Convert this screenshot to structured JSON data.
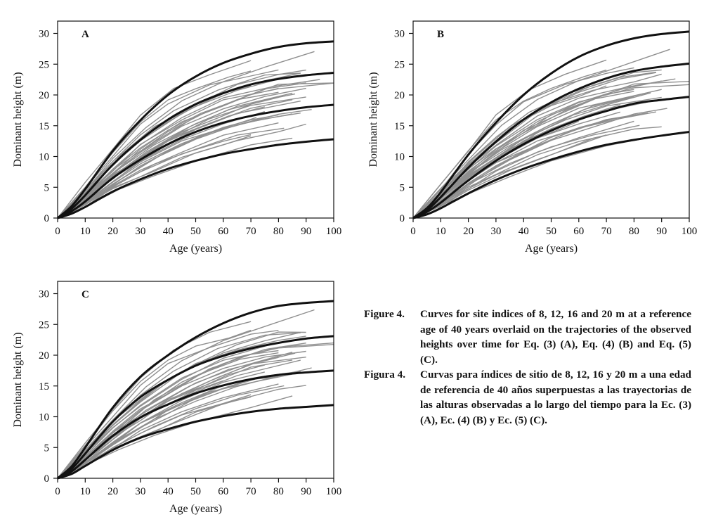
{
  "chart_data": [
    {
      "type": "line",
      "panel_label": "A",
      "xlabel": "Age (years)",
      "ylabel": "Dominant height (m)",
      "xlim": [
        0,
        100
      ],
      "ylim": [
        0,
        32
      ],
      "xticks": [
        0,
        10,
        20,
        30,
        40,
        50,
        60,
        70,
        80,
        90,
        100
      ],
      "yticks": [
        0,
        5,
        10,
        15,
        20,
        25,
        30
      ],
      "grid": false,
      "site_index_curves": [
        {
          "site_index": 8,
          "x": [
            0,
            5,
            10,
            20,
            30,
            40,
            50,
            60,
            70,
            80,
            90,
            100
          ],
          "y": [
            0,
            0.7,
            1.8,
            4.3,
            6.3,
            8.0,
            9.3,
            10.4,
            11.2,
            11.9,
            12.4,
            12.8
          ]
        },
        {
          "site_index": 12,
          "x": [
            0,
            5,
            10,
            20,
            30,
            40,
            50,
            60,
            70,
            80,
            90,
            100
          ],
          "y": [
            0,
            1.1,
            2.7,
            6.5,
            9.5,
            12.0,
            14.0,
            15.5,
            16.6,
            17.4,
            18.0,
            18.4
          ]
        },
        {
          "site_index": 16,
          "x": [
            0,
            5,
            10,
            20,
            30,
            40,
            50,
            60,
            70,
            80,
            90,
            100
          ],
          "y": [
            0,
            1.5,
            3.7,
            8.7,
            12.7,
            16.0,
            18.5,
            20.3,
            21.7,
            22.6,
            23.2,
            23.6
          ]
        },
        {
          "site_index": 20,
          "x": [
            0,
            5,
            10,
            20,
            30,
            40,
            50,
            60,
            70,
            80,
            90,
            100
          ],
          "y": [
            0,
            1.9,
            4.7,
            10.9,
            15.9,
            20.0,
            23.0,
            25.2,
            26.7,
            27.8,
            28.4,
            28.7
          ]
        }
      ]
    },
    {
      "type": "line",
      "panel_label": "B",
      "xlabel": "Age (years)",
      "ylabel": "Dominant height (m)",
      "xlim": [
        0,
        100
      ],
      "ylim": [
        0,
        32
      ],
      "xticks": [
        0,
        10,
        20,
        30,
        40,
        50,
        60,
        70,
        80,
        90,
        100
      ],
      "yticks": [
        0,
        5,
        10,
        15,
        20,
        25,
        30
      ],
      "grid": false,
      "site_index_curves": [
        {
          "site_index": 8,
          "x": [
            0,
            5,
            10,
            20,
            30,
            40,
            50,
            60,
            70,
            80,
            90,
            100
          ],
          "y": [
            0,
            0.6,
            1.6,
            4.0,
            6.2,
            8.0,
            9.5,
            10.8,
            11.9,
            12.7,
            13.4,
            14.0
          ]
        },
        {
          "site_index": 12,
          "x": [
            0,
            5,
            10,
            20,
            30,
            40,
            50,
            60,
            70,
            80,
            90,
            100
          ],
          "y": [
            0,
            1.0,
            2.5,
            6.1,
            9.3,
            12.0,
            14.2,
            16.0,
            17.4,
            18.6,
            19.2,
            19.7
          ]
        },
        {
          "site_index": 16,
          "x": [
            0,
            5,
            10,
            20,
            30,
            40,
            50,
            60,
            70,
            80,
            90,
            100
          ],
          "y": [
            0,
            1.3,
            3.4,
            8.2,
            12.4,
            16.0,
            18.8,
            21.0,
            22.7,
            23.9,
            24.6,
            25.1
          ]
        },
        {
          "site_index": 20,
          "x": [
            0,
            5,
            10,
            20,
            30,
            40,
            50,
            60,
            70,
            80,
            90,
            100
          ],
          "y": [
            0,
            1.6,
            4.2,
            10.3,
            15.5,
            20.0,
            23.5,
            26.2,
            28.0,
            29.2,
            29.9,
            30.3
          ]
        }
      ]
    },
    {
      "type": "line",
      "panel_label": "C",
      "xlabel": "Age (years)",
      "ylabel": "Dominant height (m)",
      "xlim": [
        0,
        100
      ],
      "ylim": [
        0,
        32
      ],
      "xticks": [
        0,
        10,
        20,
        30,
        40,
        50,
        60,
        70,
        80,
        90,
        100
      ],
      "yticks": [
        0,
        5,
        10,
        15,
        20,
        25,
        30
      ],
      "grid": false,
      "site_index_curves": [
        {
          "site_index": 8,
          "x": [
            0,
            5,
            10,
            20,
            30,
            40,
            50,
            60,
            70,
            80,
            90,
            100
          ],
          "y": [
            0,
            0.7,
            2.0,
            4.6,
            6.6,
            8.0,
            9.2,
            10.1,
            10.8,
            11.3,
            11.6,
            11.9
          ]
        },
        {
          "site_index": 12,
          "x": [
            0,
            5,
            10,
            20,
            30,
            40,
            50,
            60,
            70,
            80,
            90,
            100
          ],
          "y": [
            0,
            1.1,
            3.0,
            6.9,
            9.9,
            12.0,
            13.8,
            15.1,
            16.1,
            16.8,
            17.2,
            17.5
          ]
        },
        {
          "site_index": 16,
          "x": [
            0,
            5,
            10,
            20,
            30,
            40,
            50,
            60,
            70,
            80,
            90,
            100
          ],
          "y": [
            0,
            1.5,
            4.0,
            9.2,
            13.2,
            16.0,
            18.3,
            19.9,
            21.1,
            22.0,
            22.7,
            23.1
          ]
        },
        {
          "site_index": 20,
          "x": [
            0,
            5,
            10,
            20,
            30,
            40,
            50,
            60,
            70,
            80,
            90,
            100
          ],
          "y": [
            0,
            1.9,
            5.0,
            11.5,
            16.5,
            20.0,
            22.9,
            25.2,
            26.9,
            28.0,
            28.5,
            28.8
          ]
        }
      ]
    }
  ],
  "observed_trajectories": {
    "color": "#8f8f8f",
    "curve_color": "#111111",
    "series": [
      {
        "x": [
          0,
          10,
          20,
          30,
          42,
          55,
          70
        ],
        "y": [
          0,
          5.8,
          11.0,
          16.5,
          20.8,
          23.5,
          25.5
        ]
      },
      {
        "x": [
          0,
          10,
          20,
          32,
          45,
          60,
          75,
          93
        ],
        "y": [
          0,
          4.6,
          9.5,
          14.8,
          19.0,
          22.4,
          24.8,
          27.3
        ]
      },
      {
        "x": [
          0,
          10,
          20,
          35,
          50,
          65,
          80,
          90
        ],
        "y": [
          0,
          4.2,
          8.8,
          14.5,
          18.6,
          21.5,
          23.5,
          24.0
        ]
      },
      {
        "x": [
          0,
          10,
          20,
          30,
          45,
          60,
          75,
          88
        ],
        "y": [
          0,
          4.0,
          8.5,
          12.5,
          17.2,
          20.5,
          22.6,
          23.8
        ]
      },
      {
        "x": [
          0,
          10,
          22,
          35,
          50,
          65,
          80,
          100
        ],
        "y": [
          0,
          3.5,
          8.0,
          12.5,
          16.5,
          19.5,
          21.5,
          22.0
        ]
      },
      {
        "x": [
          0,
          10,
          20,
          30,
          45,
          60,
          75,
          90
        ],
        "y": [
          0,
          3.4,
          7.6,
          11.2,
          15.5,
          18.5,
          20.8,
          22.2
        ]
      },
      {
        "x": [
          0,
          10,
          20,
          35,
          50,
          65,
          85
        ],
        "y": [
          0,
          3.3,
          7.2,
          11.8,
          15.3,
          18.0,
          20.3
        ]
      },
      {
        "x": [
          0,
          10,
          20,
          30,
          40,
          55,
          70,
          80
        ],
        "y": [
          0,
          3.6,
          7.8,
          11.0,
          14.0,
          17.5,
          20.0,
          21.0
        ]
      },
      {
        "x": [
          0,
          10,
          20,
          32,
          45,
          58,
          72,
          86
        ],
        "y": [
          0,
          3.0,
          6.8,
          10.5,
          13.8,
          16.5,
          18.8,
          20.3
        ]
      },
      {
        "x": [
          0,
          10,
          20,
          30,
          40,
          55,
          70,
          90
        ],
        "y": [
          0,
          2.9,
          6.5,
          9.8,
          12.8,
          16.0,
          18.3,
          19.5
        ]
      },
      {
        "x": [
          0,
          10,
          20,
          30,
          45,
          60,
          75
        ],
        "y": [
          0,
          2.7,
          6.0,
          9.2,
          12.8,
          15.5,
          17.3
        ]
      },
      {
        "x": [
          0,
          10,
          20,
          35,
          50,
          65,
          80,
          92
        ],
        "y": [
          0,
          2.5,
          5.6,
          9.5,
          12.6,
          15.0,
          16.7,
          17.8
        ]
      },
      {
        "x": [
          0,
          10,
          20,
          30,
          40,
          55,
          70,
          85
        ],
        "y": [
          0,
          2.4,
          5.3,
          8.2,
          10.8,
          13.8,
          15.8,
          17.0
        ]
      },
      {
        "x": [
          0,
          10,
          20,
          30,
          45,
          60,
          80
        ],
        "y": [
          0,
          2.2,
          5.0,
          7.7,
          10.8,
          13.3,
          15.5
        ]
      },
      {
        "x": [
          0,
          10,
          20,
          35,
          50,
          65,
          80,
          90
        ],
        "y": [
          0,
          2.1,
          4.7,
          7.8,
          10.5,
          12.7,
          14.2,
          15.0
        ]
      },
      {
        "x": [
          0,
          10,
          20,
          30,
          45,
          60,
          70
        ],
        "y": [
          0,
          2.0,
          4.5,
          6.9,
          9.7,
          12.0,
          13.3
        ]
      },
      {
        "x": [
          0,
          10,
          22,
          35,
          50,
          70,
          85
        ],
        "y": [
          0,
          1.9,
          4.4,
          6.9,
          9.3,
          11.8,
          13.2
        ]
      },
      {
        "x": [
          0,
          10,
          20,
          30,
          40,
          55,
          70,
          80
        ],
        "y": [
          0,
          4.9,
          10.2,
          15.0,
          18.6,
          21.5,
          23.3,
          24.3
        ]
      },
      {
        "x": [
          0,
          10,
          20,
          30,
          42,
          58,
          75,
          88
        ],
        "y": [
          0,
          4.3,
          9.0,
          13.4,
          17.4,
          20.8,
          23.0,
          23.8
        ]
      },
      {
        "x": [
          0,
          10,
          20,
          30,
          45,
          60,
          78,
          95
        ],
        "y": [
          0,
          3.8,
          8.1,
          12.0,
          16.3,
          19.3,
          21.6,
          22.8
        ]
      },
      {
        "x": [
          0,
          10,
          20,
          32,
          48,
          62,
          80
        ],
        "y": [
          0,
          3.2,
          7.1,
          10.9,
          14.8,
          17.5,
          19.6
        ]
      },
      {
        "x": [
          0,
          10,
          20,
          35,
          50,
          65,
          88
        ],
        "y": [
          0,
          3.1,
          6.9,
          11.2,
          14.3,
          16.8,
          19.0
        ]
      },
      {
        "x": [
          0,
          10,
          20,
          30,
          40,
          50,
          60
        ],
        "y": [
          0,
          2.8,
          6.3,
          9.5,
          12.0,
          14.0,
          15.6
        ]
      },
      {
        "x": [
          0,
          10,
          20,
          30,
          45,
          60,
          72
        ],
        "y": [
          0,
          2.6,
          5.8,
          8.9,
          12.3,
          14.8,
          16.2
        ]
      },
      {
        "x": [
          0,
          10,
          20,
          30,
          40,
          50,
          62,
          70
        ],
        "y": [
          0,
          5.2,
          10.8,
          15.8,
          19.3,
          21.3,
          23.0,
          24.0
        ]
      },
      {
        "x": [
          0,
          10,
          20,
          35,
          50,
          65,
          80,
          90
        ],
        "y": [
          0,
          4.4,
          9.2,
          14.8,
          18.4,
          20.8,
          22.4,
          23.2
        ]
      },
      {
        "x": [
          0,
          10,
          20,
          30,
          45,
          60,
          80,
          100
        ],
        "y": [
          0,
          3.7,
          7.9,
          11.8,
          16.2,
          19.0,
          21.3,
          21.8
        ]
      },
      {
        "x": [
          0,
          10,
          20,
          30,
          45,
          60,
          75,
          90
        ],
        "y": [
          0,
          3.3,
          7.3,
          10.8,
          14.8,
          17.6,
          19.5,
          20.8
        ]
      },
      {
        "x": [
          0,
          10,
          20,
          30,
          40,
          55,
          70,
          85
        ],
        "y": [
          0,
          3.0,
          6.6,
          9.8,
          12.6,
          15.6,
          17.8,
          19.0
        ]
      },
      {
        "x": [
          0,
          10,
          20,
          30,
          45,
          60,
          75,
          88
        ],
        "y": [
          0,
          2.6,
          5.9,
          8.8,
          12.1,
          14.6,
          16.3,
          17.2
        ]
      },
      {
        "x": [
          0,
          10,
          20,
          35,
          50,
          65,
          82
        ],
        "y": [
          0,
          2.3,
          5.2,
          8.7,
          11.4,
          13.4,
          14.8
        ]
      },
      {
        "x": [
          0,
          10,
          20,
          30,
          45,
          60,
          70
        ],
        "y": [
          0,
          2.1,
          4.8,
          7.3,
          10.2,
          12.4,
          13.6
        ]
      },
      {
        "x": [
          0,
          10,
          20,
          30,
          40,
          50,
          60,
          70
        ],
        "y": [
          0,
          4.1,
          8.6,
          12.7,
          15.9,
          18.3,
          20.0,
          21.3
        ]
      },
      {
        "x": [
          0,
          10,
          20,
          30,
          40,
          52,
          66,
          80
        ],
        "y": [
          0,
          3.5,
          7.5,
          11.0,
          14.0,
          16.8,
          19.1,
          20.6
        ]
      },
      {
        "x": [
          0,
          10,
          20,
          30,
          40,
          50,
          62,
          75
        ],
        "y": [
          0,
          2.9,
          6.4,
          9.6,
          12.3,
          14.5,
          16.6,
          18.2
        ]
      },
      {
        "x": [
          0,
          10,
          20,
          30,
          40,
          50,
          60,
          70,
          80
        ],
        "y": [
          0,
          2.4,
          5.4,
          8.3,
          10.8,
          12.9,
          14.5,
          15.8,
          16.6
        ]
      }
    ]
  },
  "caption": [
    {
      "label": "Figure 4.",
      "text": "Curves for site indices of 8, 12, 16 and 20 m at a reference age of 40 years overlaid on the trajectories of the observed heights over time for Eq. (3) (A), Eq. (4) (B) and Eq. (5) (C)."
    },
    {
      "label": "Figura 4.",
      "text": "Curvas para índices de sitio de 8, 12, 16 y 20 m a una edad de referencia de 40 años superpuestas a las trayectorias de las alturas observadas a lo largo del tiempo para la Ec. (3) (A), Ec. (4) (B) y Ec. (5) (C)."
    }
  ]
}
